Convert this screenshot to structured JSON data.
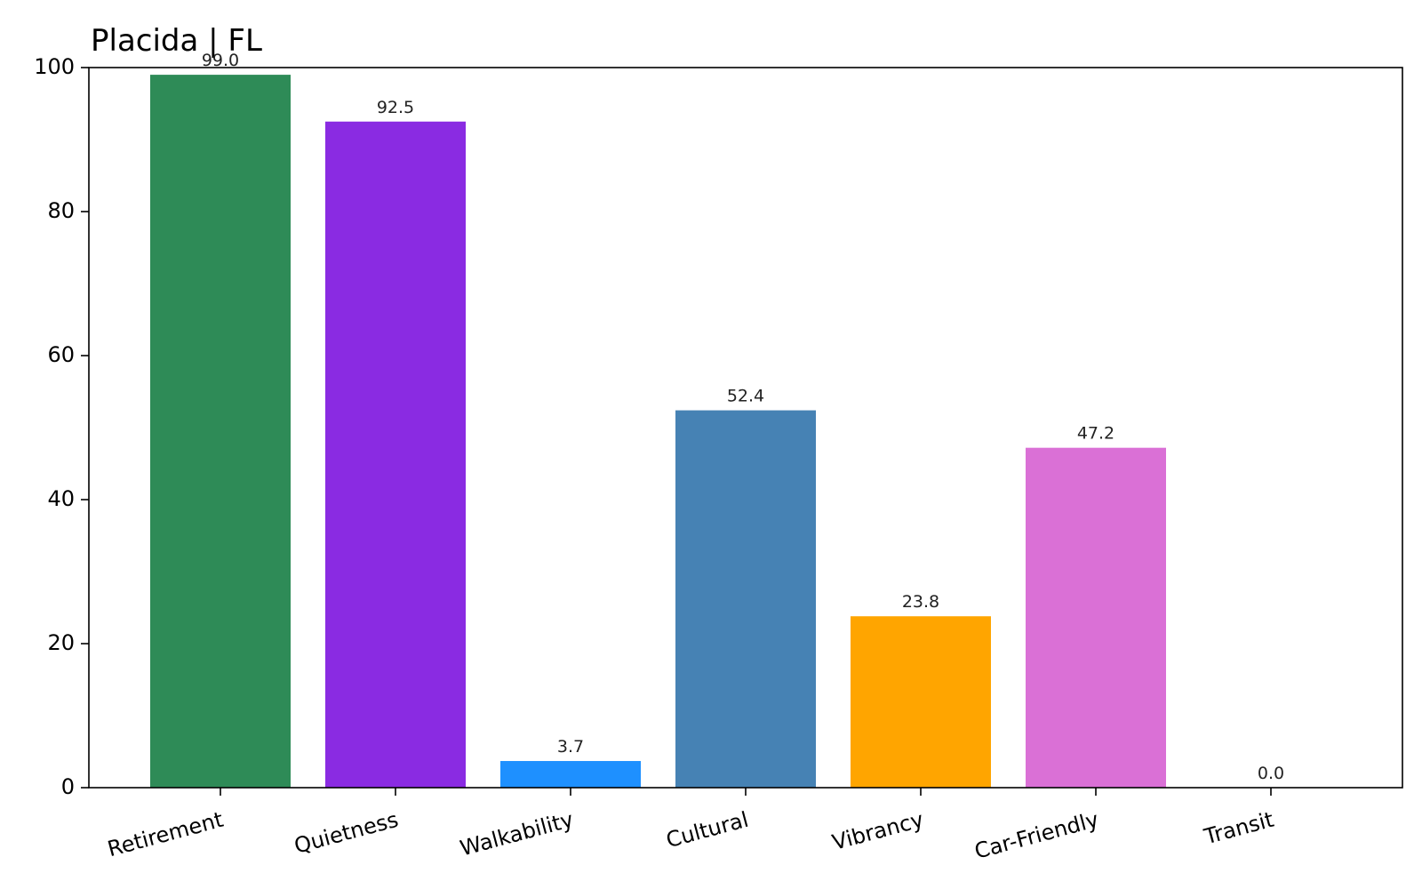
{
  "chart_data": {
    "type": "bar",
    "title": "Placida | FL",
    "xlabel": "",
    "ylabel": "",
    "categories": [
      "Retirement",
      "Quietness",
      "Walkability",
      "Cultural",
      "Vibrancy",
      "Car-Friendly",
      "Transit"
    ],
    "values": [
      99.0,
      92.5,
      3.7,
      52.4,
      23.8,
      47.2,
      0.0
    ],
    "value_labels": [
      "99.0",
      "92.5",
      "3.7",
      "52.4",
      "23.8",
      "47.2",
      "0.0"
    ],
    "colors": [
      "#2e8b57",
      "#8a2be2",
      "#1e90ff",
      "#4682b4",
      "#ffa500",
      "#da70d6",
      "#808080"
    ],
    "ylim": [
      0,
      100
    ],
    "yticks": [
      0,
      20,
      40,
      60,
      80,
      100
    ],
    "ytick_labels": [
      "0",
      "20",
      "40",
      "60",
      "80",
      "100"
    ],
    "grid": false,
    "legend": "none"
  }
}
